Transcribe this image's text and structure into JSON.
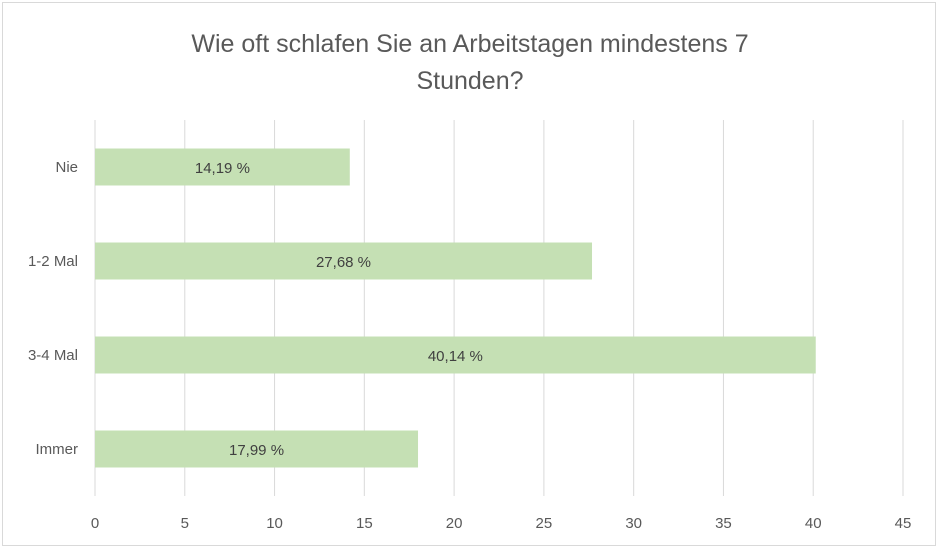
{
  "chart_data": {
    "type": "bar",
    "orientation": "horizontal",
    "title": "Wie oft schlafen Sie an Arbeitstagen mindestens 7\nStunden?",
    "categories": [
      "Nie",
      "1-2 Mal",
      "3-4 Mal",
      "Immer"
    ],
    "values": [
      14.19,
      27.68,
      40.14,
      17.99
    ],
    "data_labels": [
      "14,19 %",
      "27,68 %",
      "40,14 %",
      "17,99 %"
    ],
    "xlim": [
      0,
      45
    ],
    "x_ticks": [
      "0",
      "5",
      "10",
      "15",
      "20",
      "25",
      "30",
      "35",
      "40",
      "45"
    ],
    "grid": "vertical",
    "legend": "none",
    "bar_color": "#c5e0b4"
  }
}
